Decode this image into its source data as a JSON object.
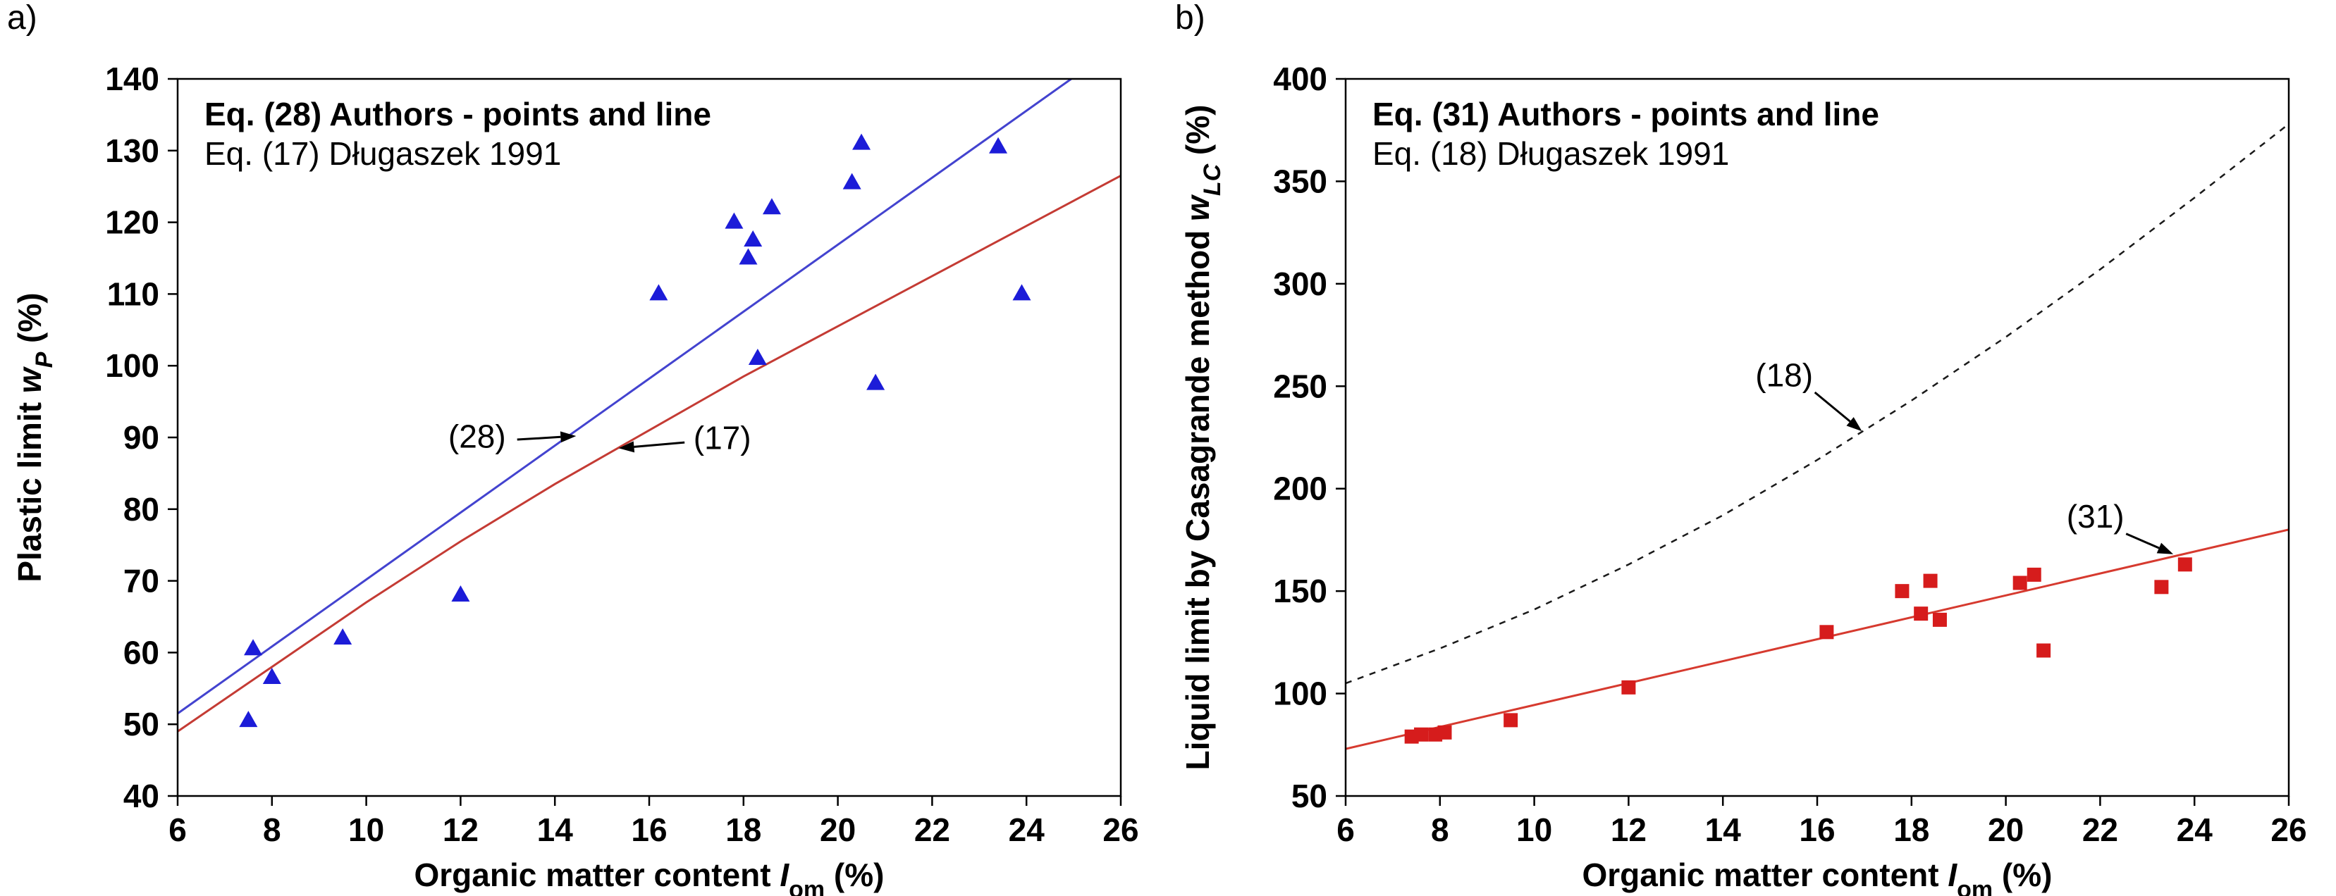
{
  "figure": {
    "background": "#ffffff"
  },
  "chart_data": [
    {
      "id": "a",
      "type": "scatter",
      "corner_label": "a)",
      "title": "",
      "grid": false,
      "legend_position": "top-left-inside",
      "legend_lines": [
        {
          "text": "Eq. (28) Authors - points and line",
          "bold": true
        },
        {
          "text": "Eq. (17) Długaszek 1991",
          "bold": false
        }
      ],
      "xlabel_parts": [
        [
          "Organic matter content ",
          "n"
        ],
        [
          "I",
          "i"
        ],
        [
          "om",
          "sub"
        ],
        [
          " (%)",
          "n"
        ]
      ],
      "ylabel_parts": [
        [
          "Plastic limit ",
          "n"
        ],
        [
          "w",
          "i"
        ],
        [
          "P",
          "isub"
        ],
        [
          " (%)",
          "n"
        ]
      ],
      "xlim": [
        6,
        26
      ],
      "ylim": [
        40,
        140
      ],
      "x_ticks": [
        6,
        8,
        10,
        12,
        14,
        16,
        18,
        20,
        22,
        24,
        26
      ],
      "y_ticks": [
        40,
        50,
        60,
        70,
        80,
        90,
        100,
        110,
        120,
        130,
        140
      ],
      "points": {
        "name": "Authors data points",
        "marker": "triangle",
        "color": "#1c1cd8",
        "data": [
          [
            7.5,
            50.5
          ],
          [
            7.6,
            60.5
          ],
          [
            8.0,
            56.5
          ],
          [
            9.5,
            62
          ],
          [
            12.0,
            68
          ],
          [
            16.2,
            110
          ],
          [
            17.8,
            120
          ],
          [
            18.1,
            115
          ],
          [
            18.2,
            117.5
          ],
          [
            18.3,
            101
          ],
          [
            18.6,
            122
          ],
          [
            20.3,
            125.5
          ],
          [
            20.5,
            131
          ],
          [
            20.8,
            97.5
          ],
          [
            23.4,
            130.5
          ],
          [
            23.9,
            110
          ]
        ]
      },
      "lines": [
        {
          "name": "Eq. (28) Authors line",
          "color": "#4343cf",
          "style": "solid",
          "width": 3,
          "points": [
            [
              6,
              51.5
            ],
            [
              24.95,
              140
            ]
          ]
        },
        {
          "name": "Eq. (17) Długaszek 1991 line",
          "color": "#c43b34",
          "style": "solid",
          "width": 3,
          "points": [
            [
              6,
              49
            ],
            [
              8,
              58
            ],
            [
              10,
              67
            ],
            [
              12,
              75.5
            ],
            [
              14,
              83.5
            ],
            [
              16,
              91
            ],
            [
              18,
              98.5
            ],
            [
              20,
              105.5
            ],
            [
              22,
              112.5
            ],
            [
              24,
              119.5
            ],
            [
              26,
              126.5
            ]
          ]
        }
      ],
      "annotations": [
        {
          "text": "(28)",
          "text_xy": [
            12.35,
            88.6
          ],
          "arrow_from": [
            13.2,
            89.7
          ],
          "arrow_to": [
            14.45,
            90.2
          ]
        },
        {
          "text": "(17)",
          "text_xy": [
            17.55,
            88.4
          ],
          "arrow_from": [
            16.75,
            89.3
          ],
          "arrow_to": [
            15.35,
            88.5
          ]
        }
      ]
    },
    {
      "id": "b",
      "type": "scatter",
      "corner_label": "b)",
      "title": "",
      "grid": false,
      "legend_position": "top-left-inside",
      "legend_lines": [
        {
          "text": "Eq. (31) Authors - points and line",
          "bold": true
        },
        {
          "text": "Eq. (18) Długaszek 1991",
          "bold": false
        }
      ],
      "xlabel_parts": [
        [
          "Organic matter content ",
          "n"
        ],
        [
          "I",
          "i"
        ],
        [
          "om",
          "sub"
        ],
        [
          " (%)",
          "n"
        ]
      ],
      "ylabel_parts": [
        [
          "Liquid limit by Casagrande method ",
          "n"
        ],
        [
          "w",
          "i"
        ],
        [
          "LC",
          "isub"
        ],
        [
          " (%)",
          "n"
        ]
      ],
      "xlim": [
        6,
        26
      ],
      "ylim": [
        50,
        400
      ],
      "x_ticks": [
        6,
        8,
        10,
        12,
        14,
        16,
        18,
        20,
        22,
        24,
        26
      ],
      "y_ticks": [
        50,
        100,
        150,
        200,
        250,
        300,
        350,
        400
      ],
      "points": {
        "name": "Authors data points",
        "marker": "square",
        "color": "#d61c1c",
        "data": [
          [
            7.4,
            79
          ],
          [
            7.6,
            80
          ],
          [
            7.9,
            80
          ],
          [
            8.1,
            81
          ],
          [
            9.5,
            87
          ],
          [
            12.0,
            103
          ],
          [
            16.2,
            130
          ],
          [
            17.8,
            150
          ],
          [
            18.2,
            139
          ],
          [
            18.4,
            155
          ],
          [
            18.6,
            136
          ],
          [
            20.3,
            154
          ],
          [
            20.6,
            158
          ],
          [
            20.8,
            121
          ],
          [
            23.3,
            152
          ],
          [
            23.8,
            163
          ]
        ]
      },
      "lines": [
        {
          "name": "Eq. (31) Authors line",
          "color": "#d63a2f",
          "style": "solid",
          "width": 3,
          "points": [
            [
              6,
              73
            ],
            [
              26,
              180
            ]
          ]
        },
        {
          "name": "Eq. (18) Długaszek 1991 line",
          "color": "#1a1a1a",
          "style": "dashed",
          "width": 2.5,
          "points": [
            [
              6,
              105
            ],
            [
              8,
              122
            ],
            [
              10,
              141
            ],
            [
              12,
              163
            ],
            [
              14,
              187
            ],
            [
              16,
              214
            ],
            [
              18,
              243
            ],
            [
              20,
              274
            ],
            [
              22,
              307
            ],
            [
              24,
              342
            ],
            [
              26,
              378
            ]
          ]
        }
      ],
      "annotations": [
        {
          "text": "(18)",
          "text_xy": [
            15.3,
            250
          ],
          "arrow_from": [
            15.95,
            247
          ],
          "arrow_to": [
            16.95,
            228
          ]
        },
        {
          "text": "(31)",
          "text_xy": [
            21.9,
            181
          ],
          "arrow_from": [
            22.55,
            178
          ],
          "arrow_to": [
            23.55,
            168
          ]
        }
      ]
    }
  ]
}
